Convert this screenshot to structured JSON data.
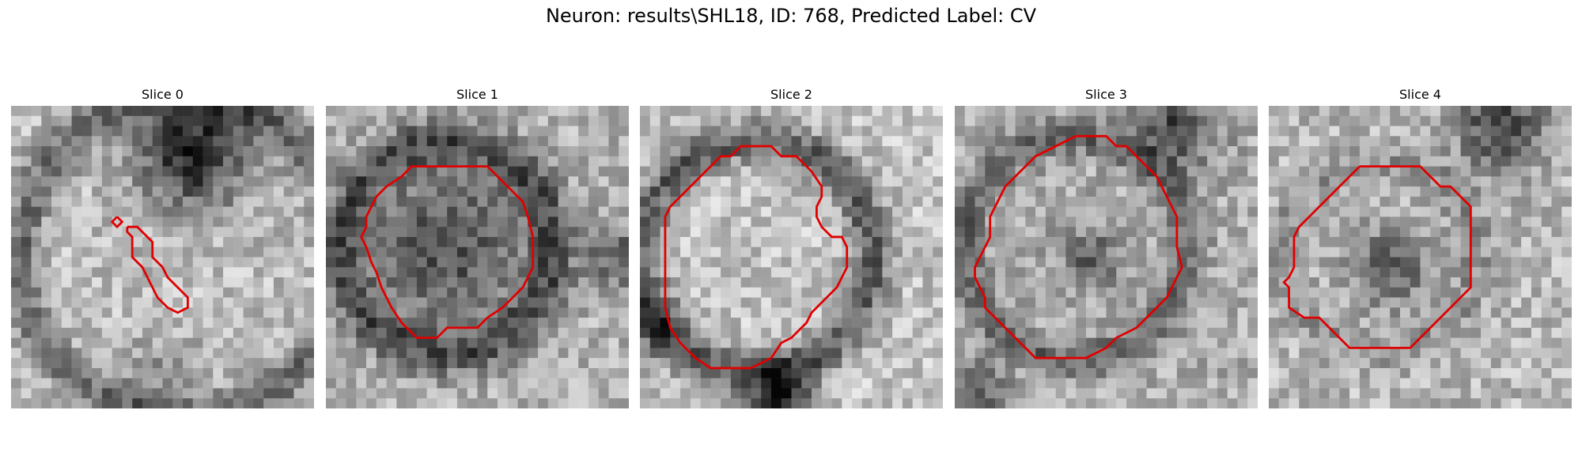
{
  "figure": {
    "title": "Neuron: results\\SHL18, ID: 768, Predicted Label: CV"
  },
  "panels": [
    {
      "title": "Slice 0",
      "contour_color": "#e00000",
      "contours": [
        [
          [
            10.5,
            11
          ],
          [
            10,
            11.5
          ],
          [
            10.5,
            12
          ],
          [
            11,
            11.5
          ],
          [
            10.5,
            11
          ]
        ],
        [
          [
            11.5,
            12
          ],
          [
            12.5,
            12
          ],
          [
            14,
            13.5
          ],
          [
            14,
            15
          ],
          [
            15,
            16
          ],
          [
            15.5,
            17
          ],
          [
            17.5,
            19
          ],
          [
            17.5,
            20
          ],
          [
            16.5,
            20.5
          ],
          [
            15.5,
            20
          ],
          [
            14.5,
            19
          ],
          [
            13.5,
            17
          ],
          [
            13,
            16
          ],
          [
            12,
            15
          ],
          [
            12,
            13
          ],
          [
            11.5,
            12.5
          ],
          [
            11.5,
            12
          ]
        ]
      ]
    },
    {
      "title": "Slice 1",
      "contour_color": "#e00000",
      "contours": [
        [
          [
            12,
            6
          ],
          [
            16,
            6
          ],
          [
            18.5,
            8.5
          ],
          [
            19.5,
            9.5
          ],
          [
            20,
            11
          ],
          [
            20.5,
            13
          ],
          [
            20.5,
            16
          ],
          [
            19.5,
            18
          ],
          [
            18.5,
            19
          ],
          [
            17.5,
            20
          ],
          [
            16,
            21
          ],
          [
            15,
            22
          ],
          [
            12,
            22
          ],
          [
            11,
            23
          ],
          [
            9,
            23
          ],
          [
            7.5,
            21.5
          ],
          [
            6.5,
            20
          ],
          [
            5.5,
            18
          ],
          [
            5,
            16.5
          ],
          [
            4.5,
            15.5
          ],
          [
            4,
            14
          ],
          [
            3.5,
            13
          ],
          [
            4,
            12
          ],
          [
            4,
            11
          ],
          [
            5,
            9
          ],
          [
            6,
            8
          ],
          [
            7.5,
            7
          ],
          [
            8.5,
            6
          ],
          [
            12,
            6
          ]
        ]
      ]
    },
    {
      "title": "Slice 2",
      "contour_color": "#e00000",
      "contours": [
        [
          [
            12,
            4
          ],
          [
            13,
            4
          ],
          [
            14,
            5
          ],
          [
            15.5,
            5
          ],
          [
            16,
            5.5
          ],
          [
            17,
            6.5
          ],
          [
            18,
            8
          ],
          [
            18,
            9
          ],
          [
            17.5,
            10
          ],
          [
            17.5,
            11
          ],
          [
            18,
            12
          ],
          [
            19,
            13
          ],
          [
            20,
            13
          ],
          [
            20.5,
            14
          ],
          [
            20.5,
            16
          ],
          [
            19.5,
            18
          ],
          [
            18.5,
            19
          ],
          [
            17,
            20.5
          ],
          [
            16.5,
            21.5
          ],
          [
            15,
            23
          ],
          [
            14,
            23.5
          ],
          [
            13,
            25
          ],
          [
            11,
            26
          ],
          [
            7,
            26
          ],
          [
            5.5,
            25
          ],
          [
            4,
            23.5
          ],
          [
            3,
            22
          ],
          [
            2.5,
            20
          ],
          [
            2.5,
            11
          ],
          [
            3,
            10
          ],
          [
            4,
            9
          ],
          [
            5,
            8
          ],
          [
            6,
            7
          ],
          [
            7,
            6
          ],
          [
            8,
            5
          ],
          [
            9,
            5
          ],
          [
            10,
            4
          ],
          [
            12,
            4
          ]
        ]
      ]
    },
    {
      "title": "Slice 3",
      "contour_color": "#e00000",
      "contours": [
        [
          [
            13,
            3
          ],
          [
            15,
            3
          ],
          [
            16,
            4
          ],
          [
            17,
            4
          ],
          [
            18,
            5
          ],
          [
            19,
            6
          ],
          [
            20,
            7
          ],
          [
            20.5,
            8
          ],
          [
            21,
            9
          ],
          [
            21.5,
            10
          ],
          [
            22,
            11
          ],
          [
            22,
            14
          ],
          [
            22.5,
            16
          ],
          [
            22,
            17
          ],
          [
            21,
            19
          ],
          [
            20,
            20
          ],
          [
            19,
            21
          ],
          [
            18,
            22
          ],
          [
            16,
            23
          ],
          [
            15,
            24
          ],
          [
            13,
            25
          ],
          [
            8,
            25
          ],
          [
            7,
            24
          ],
          [
            6,
            23
          ],
          [
            5,
            22
          ],
          [
            4,
            21
          ],
          [
            3,
            20
          ],
          [
            3,
            19
          ],
          [
            2.5,
            18
          ],
          [
            2,
            17
          ],
          [
            2,
            16
          ],
          [
            3,
            14
          ],
          [
            3.5,
            13
          ],
          [
            3.5,
            11
          ],
          [
            4,
            10
          ],
          [
            4.5,
            9
          ],
          [
            5,
            8
          ],
          [
            6,
            7
          ],
          [
            7,
            6
          ],
          [
            8,
            5
          ],
          [
            10,
            4
          ],
          [
            12,
            3
          ],
          [
            13,
            3
          ]
        ]
      ]
    },
    {
      "title": "Slice 4",
      "contour_color": "#e00000",
      "contours": [
        [
          [
            9,
            6
          ],
          [
            15,
            6
          ],
          [
            16,
            7
          ],
          [
            17,
            8
          ],
          [
            18,
            8
          ],
          [
            19,
            9
          ],
          [
            20,
            10
          ],
          [
            20,
            18
          ],
          [
            19,
            19
          ],
          [
            18,
            20
          ],
          [
            17,
            21
          ],
          [
            16,
            22
          ],
          [
            15,
            23
          ],
          [
            14,
            24
          ],
          [
            8,
            24
          ],
          [
            7,
            23
          ],
          [
            6,
            22
          ],
          [
            5,
            21
          ],
          [
            3.5,
            21
          ],
          [
            2,
            20
          ],
          [
            2,
            18
          ],
          [
            1.5,
            17.5
          ],
          [
            2,
            17
          ],
          [
            2.5,
            16
          ],
          [
            2.5,
            13
          ],
          [
            3,
            12
          ],
          [
            4,
            11
          ],
          [
            5,
            10
          ],
          [
            6,
            9
          ],
          [
            7,
            8
          ],
          [
            8,
            7
          ],
          [
            9,
            6
          ]
        ]
      ]
    }
  ]
}
